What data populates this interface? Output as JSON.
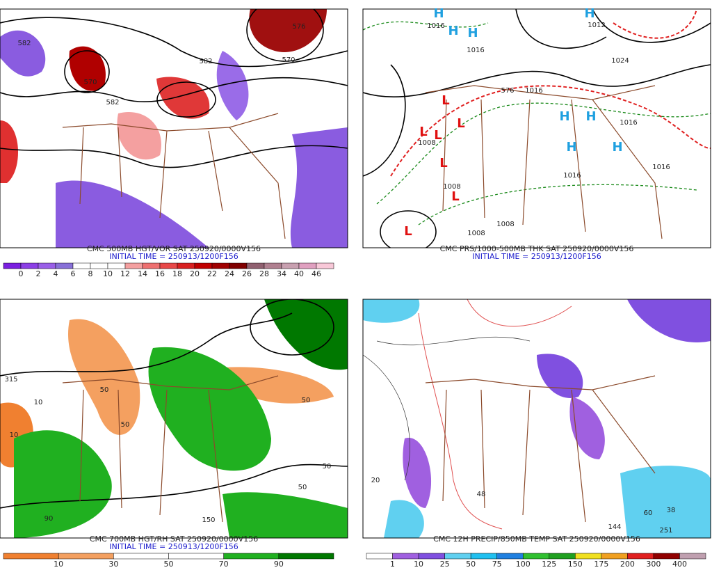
{
  "panels": [
    {
      "caption": "CMC 500MB HGT/VOR SAT 250920/0000V156",
      "initial_time": "INITIAL TIME = 250913/1200F156",
      "colorbar": {
        "colors": [
          "#7b1fe0",
          "#8c3fe6",
          "#9a5fe8",
          "#8870d8",
          "#ffffff",
          "#ffffff",
          "#ffffff",
          "#f4a0a0",
          "#ee7070",
          "#e84848",
          "#d82020",
          "#c00000",
          "#a00000",
          "#800000",
          "#906070",
          "#b08090",
          "#c8a0b0",
          "#e0a0c0",
          "#f8c8d8"
        ],
        "labels": [
          "0",
          "2",
          "4",
          "6",
          "8",
          "10",
          "12",
          "14",
          "16",
          "18",
          "20",
          "22",
          "24",
          "26",
          "28",
          "34",
          "40",
          "46"
        ]
      },
      "map_labels": [
        "582",
        "570",
        "582",
        "570",
        "582",
        "576"
      ]
    },
    {
      "caption": "CMC PRS/1000-500MB THK SAT 250920/0000V156",
      "initial_time": "INITIAL TIME = 250913/1200F156",
      "map_labels": [
        "H",
        "1016",
        "H",
        "H",
        "1016",
        "H",
        "1012",
        "1024",
        "L",
        "L",
        "L",
        "L",
        "L",
        "L",
        "L",
        "H",
        "H",
        "H",
        "H",
        "1016",
        "1016",
        "1016",
        "1008",
        "1008",
        "1008",
        "1016",
        "1008",
        "576"
      ]
    },
    {
      "caption": "CMC 700MB HGT/RH SAT 250920/0000V156",
      "initial_time": "INITIAL TIME = 250913/1200F156",
      "colorbar": {
        "colors": [
          "#f08030",
          "#f4a060",
          "#ffffff",
          "#ffffff",
          "#20b020",
          "#007800"
        ],
        "labels": [
          "10",
          "30",
          "50",
          "70",
          "90"
        ]
      },
      "map_labels": [
        "315",
        "10",
        "50",
        "50",
        "90",
        "50",
        "50",
        "150",
        "50",
        "10"
      ]
    },
    {
      "caption": "CMC 12H PRECIP/850MB TEMP SAT 250920/0000V156",
      "colorbar": {
        "colors": [
          "#ffffff",
          "#a060e0",
          "#8050e0",
          "#60d0f0",
          "#20c0f0",
          "#2080e0",
          "#30c030",
          "#20a020",
          "#f0e020",
          "#f0a020",
          "#e02020",
          "#900000",
          "#c0a0b0"
        ],
        "labels": [
          "1",
          "10",
          "25",
          "50",
          "75",
          "100",
          "125",
          "150",
          "175",
          "200",
          "300",
          "400"
        ]
      },
      "map_labels": [
        "144",
        "60",
        "38",
        "251",
        "48",
        "20"
      ]
    }
  ]
}
